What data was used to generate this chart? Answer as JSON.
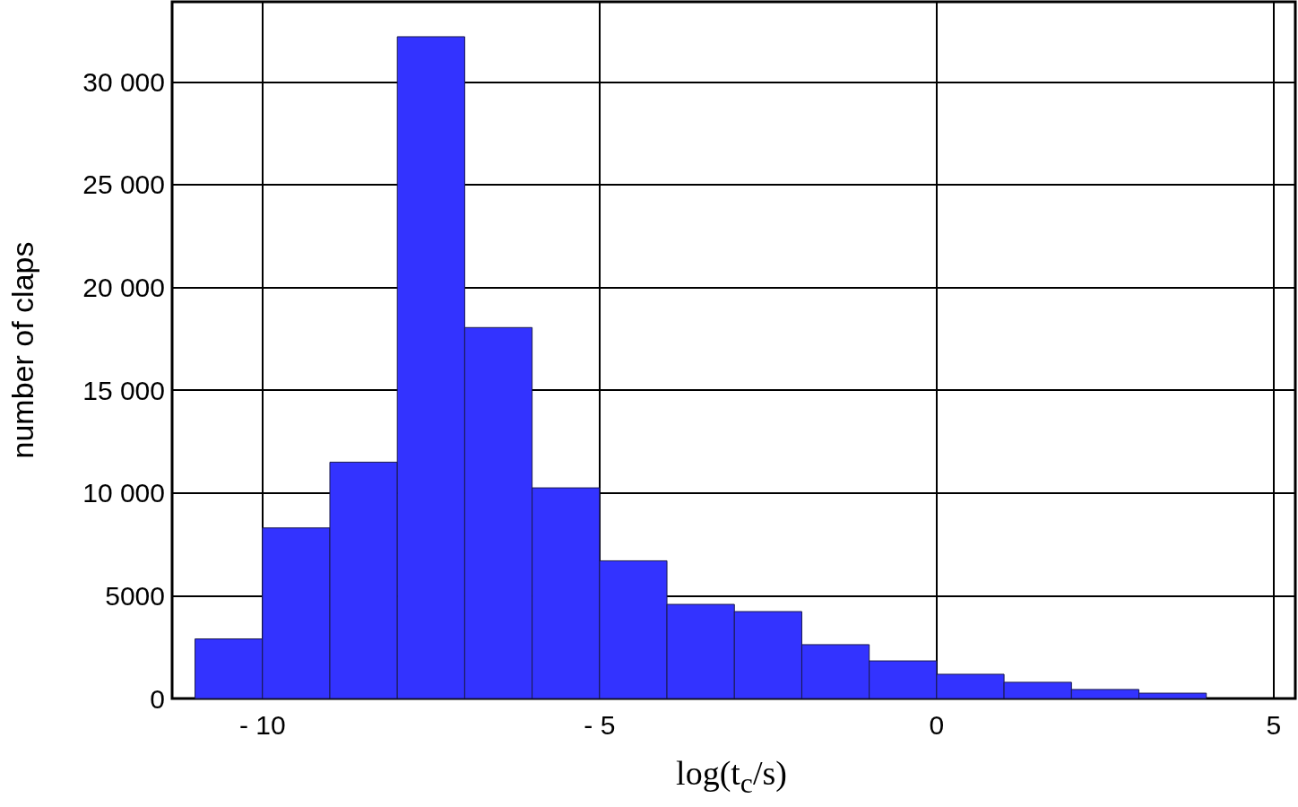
{
  "chart_data": {
    "type": "histogram",
    "xlabel": "log(t$_{c}$/s)",
    "ylabel": "number of claps",
    "bins": [
      -11,
      -10,
      -9,
      -8,
      -7,
      -6,
      -5,
      -4,
      -3,
      -2,
      -1,
      0,
      1,
      2,
      3,
      4
    ],
    "values": [
      2900,
      8300,
      11500,
      32200,
      18050,
      10250,
      6700,
      4580,
      4230,
      2620,
      1830,
      1180,
      790,
      440,
      260
    ],
    "color": "#3333ff",
    "xlim": [
      -11.34,
      5.32
    ],
    "xticks": [
      {
        "value": -10,
        "label": "- 10"
      },
      {
        "value": -5,
        "label": "- 5"
      },
      0,
      5
    ],
    "ylim": [
      0,
      33900
    ],
    "yticks": [
      0,
      5000,
      {
        "value": 10000,
        "label": "10 000"
      },
      {
        "value": 15000,
        "label": "15 000"
      },
      {
        "value": 20000,
        "label": "20 000"
      },
      {
        "value": 25000,
        "label": "25 000"
      },
      {
        "value": 30000,
        "label": "30 000"
      }
    ],
    "grid": true
  }
}
